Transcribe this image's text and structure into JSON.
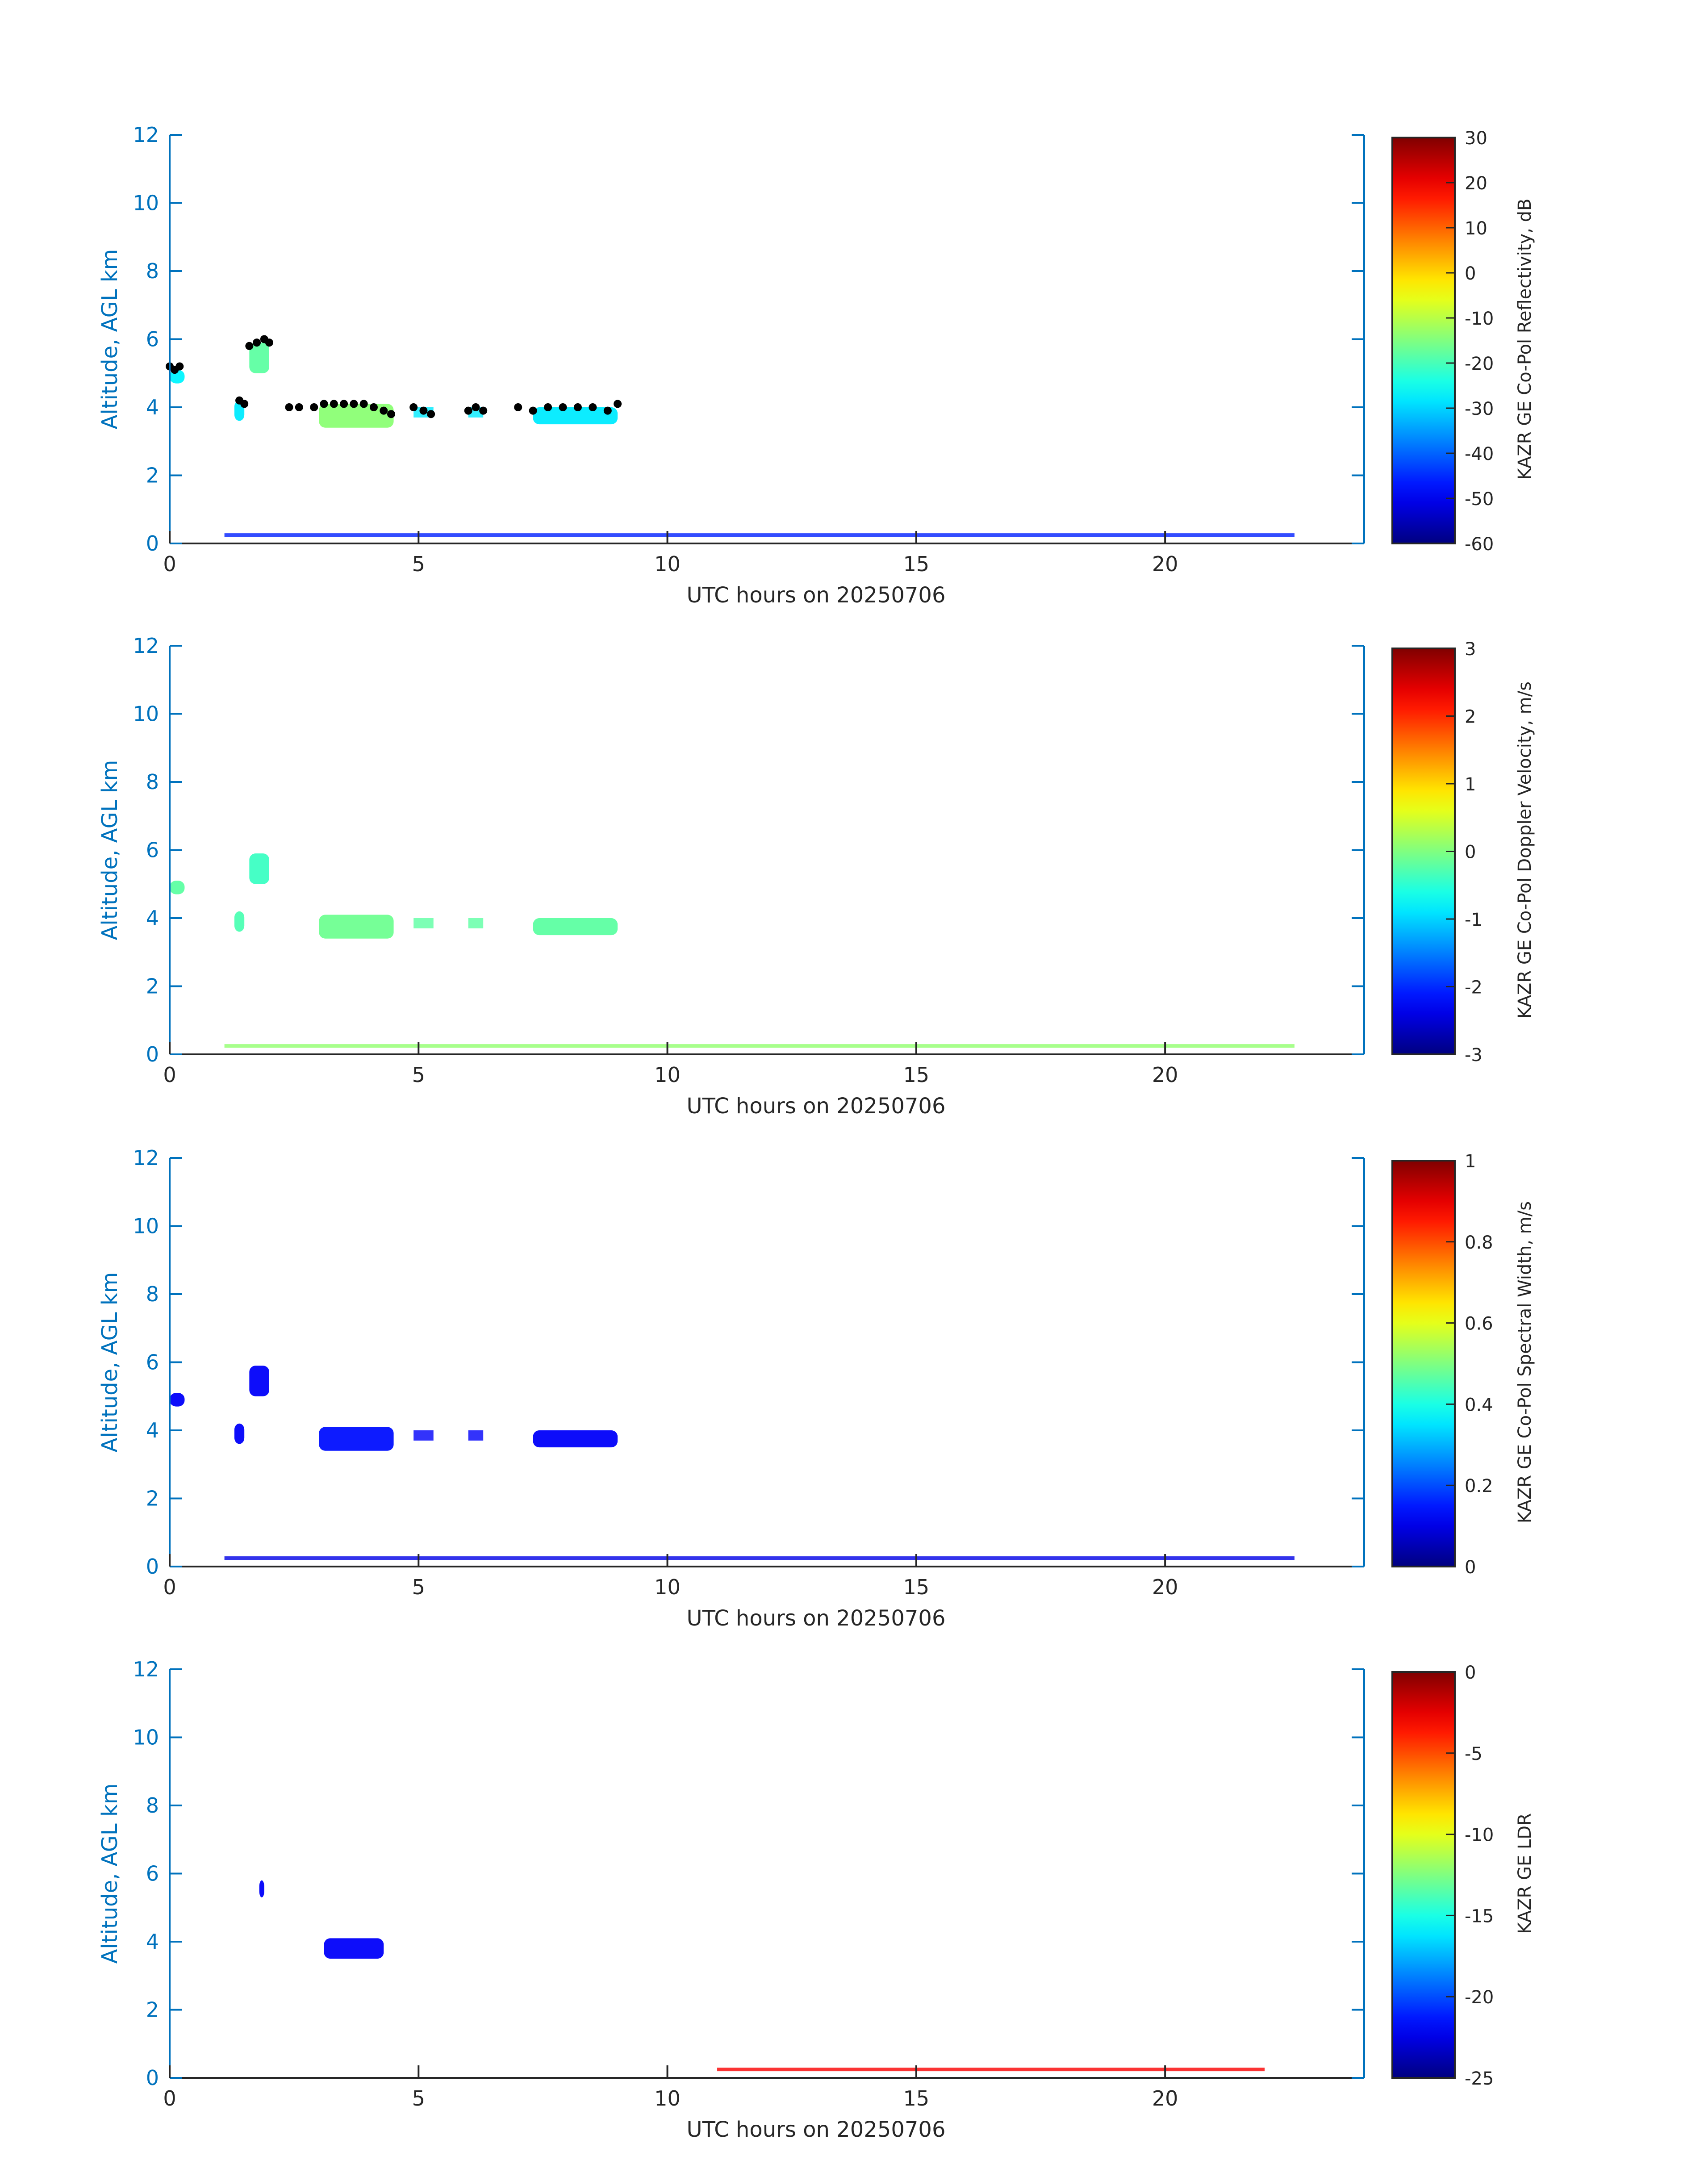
{
  "colors": {
    "axis": "#0072bd",
    "text": "#262626",
    "cloud_top": "#000000"
  },
  "colormap": "jet",
  "chart_data": [
    {
      "type": "heatmap",
      "xlabel": "UTC hours on 20250706",
      "ylabel": "Altitude, AGL km",
      "xlim": [
        0,
        24
      ],
      "ylim": [
        0,
        12
      ],
      "xticks": [
        0,
        5,
        10,
        15,
        20
      ],
      "yticks": [
        0,
        2,
        4,
        6,
        8,
        10,
        12
      ],
      "colorbar_label": "KAZR GE Co-Pol Reflectivity, dB",
      "clim": [
        -60,
        30
      ],
      "cticks": [
        -60,
        -50,
        -40,
        -30,
        -20,
        -10,
        0,
        10,
        20,
        30
      ],
      "echo_regions": [
        {
          "x": [
            0.0,
            0.3
          ],
          "y": [
            4.7,
            5.1
          ],
          "value": -27
        },
        {
          "x": [
            1.3,
            1.5
          ],
          "y": [
            3.6,
            4.2
          ],
          "value": -28
        },
        {
          "x": [
            1.6,
            2.0
          ],
          "y": [
            5.0,
            5.9
          ],
          "value": -18
        },
        {
          "x": [
            3.0,
            4.5
          ],
          "y": [
            3.4,
            4.1
          ],
          "value": -14
        },
        {
          "x": [
            4.9,
            5.3
          ],
          "y": [
            3.7,
            4.0
          ],
          "value": -28
        },
        {
          "x": [
            6.0,
            6.3
          ],
          "y": [
            3.7,
            4.0
          ],
          "value": -28
        },
        {
          "x": [
            7.3,
            9.0
          ],
          "y": [
            3.5,
            4.0
          ],
          "value": -28
        },
        {
          "x": [
            1.1,
            22.6
          ],
          "y": [
            0.2,
            0.3
          ],
          "value": -46
        }
      ],
      "cloud_top_points": [
        {
          "x": 0.0,
          "y": 5.2
        },
        {
          "x": 0.1,
          "y": 5.1
        },
        {
          "x": 0.2,
          "y": 5.2
        },
        {
          "x": 1.4,
          "y": 4.2
        },
        {
          "x": 1.5,
          "y": 4.1
        },
        {
          "x": 1.6,
          "y": 5.8
        },
        {
          "x": 1.75,
          "y": 5.9
        },
        {
          "x": 1.9,
          "y": 6.0
        },
        {
          "x": 2.0,
          "y": 5.9
        },
        {
          "x": 2.4,
          "y": 4.0
        },
        {
          "x": 2.6,
          "y": 4.0
        },
        {
          "x": 2.9,
          "y": 4.0
        },
        {
          "x": 3.1,
          "y": 4.1
        },
        {
          "x": 3.3,
          "y": 4.1
        },
        {
          "x": 3.5,
          "y": 4.1
        },
        {
          "x": 3.7,
          "y": 4.1
        },
        {
          "x": 3.9,
          "y": 4.1
        },
        {
          "x": 4.1,
          "y": 4.0
        },
        {
          "x": 4.3,
          "y": 3.9
        },
        {
          "x": 4.45,
          "y": 3.8
        },
        {
          "x": 4.9,
          "y": 4.0
        },
        {
          "x": 5.1,
          "y": 3.9
        },
        {
          "x": 5.25,
          "y": 3.8
        },
        {
          "x": 6.0,
          "y": 3.9
        },
        {
          "x": 6.15,
          "y": 4.0
        },
        {
          "x": 6.3,
          "y": 3.9
        },
        {
          "x": 7.0,
          "y": 4.0
        },
        {
          "x": 7.3,
          "y": 3.9
        },
        {
          "x": 7.6,
          "y": 4.0
        },
        {
          "x": 7.9,
          "y": 4.0
        },
        {
          "x": 8.2,
          "y": 4.0
        },
        {
          "x": 8.5,
          "y": 4.0
        },
        {
          "x": 8.8,
          "y": 3.9
        },
        {
          "x": 9.0,
          "y": 4.1
        }
      ]
    },
    {
      "type": "heatmap",
      "xlabel": "UTC hours on 20250706",
      "ylabel": "Altitude, AGL km",
      "xlim": [
        0,
        24
      ],
      "ylim": [
        0,
        12
      ],
      "xticks": [
        0,
        5,
        10,
        15,
        20
      ],
      "yticks": [
        0,
        2,
        4,
        6,
        8,
        10,
        12
      ],
      "colorbar_label": "KAZR GE Co-Pol Doppler Velocity, m/s",
      "clim": [
        -3,
        3
      ],
      "cticks": [
        -3,
        -2,
        -1,
        0,
        1,
        2,
        3
      ],
      "echo_regions": [
        {
          "x": [
            0.0,
            0.3
          ],
          "y": [
            4.7,
            5.1
          ],
          "value": -0.2
        },
        {
          "x": [
            1.3,
            1.5
          ],
          "y": [
            3.6,
            4.2
          ],
          "value": -0.3
        },
        {
          "x": [
            1.6,
            2.0
          ],
          "y": [
            5.0,
            5.9
          ],
          "value": -0.4
        },
        {
          "x": [
            3.0,
            4.5
          ],
          "y": [
            3.4,
            4.1
          ],
          "value": -0.1
        },
        {
          "x": [
            4.9,
            5.3
          ],
          "y": [
            3.7,
            4.0
          ],
          "value": -0.2
        },
        {
          "x": [
            6.0,
            6.3
          ],
          "y": [
            3.7,
            4.0
          ],
          "value": -0.2
        },
        {
          "x": [
            7.3,
            9.0
          ],
          "y": [
            3.5,
            4.0
          ],
          "value": -0.2
        },
        {
          "x": [
            1.1,
            22.6
          ],
          "y": [
            0.2,
            0.3
          ],
          "value": 0.1
        }
      ]
    },
    {
      "type": "heatmap",
      "xlabel": "UTC hours on 20250706",
      "ylabel": "Altitude, AGL km",
      "xlim": [
        0,
        24
      ],
      "ylim": [
        0,
        12
      ],
      "xticks": [
        0,
        5,
        10,
        15,
        20
      ],
      "yticks": [
        0,
        2,
        4,
        6,
        8,
        10,
        12
      ],
      "colorbar_label": "KAZR GE Co-Pol Spectral Width, m/s",
      "clim": [
        0,
        1
      ],
      "cticks": [
        0,
        0.2,
        0.4,
        0.6,
        0.8,
        1
      ],
      "echo_regions": [
        {
          "x": [
            0.0,
            0.3
          ],
          "y": [
            4.7,
            5.1
          ],
          "value": 0.12
        },
        {
          "x": [
            1.3,
            1.5
          ],
          "y": [
            3.6,
            4.2
          ],
          "value": 0.12
        },
        {
          "x": [
            1.6,
            2.0
          ],
          "y": [
            5.0,
            5.9
          ],
          "value": 0.12
        },
        {
          "x": [
            3.0,
            4.5
          ],
          "y": [
            3.4,
            4.1
          ],
          "value": 0.14
        },
        {
          "x": [
            4.9,
            5.3
          ],
          "y": [
            3.7,
            4.0
          ],
          "value": 0.12
        },
        {
          "x": [
            6.0,
            6.3
          ],
          "y": [
            3.7,
            4.0
          ],
          "value": 0.12
        },
        {
          "x": [
            7.3,
            9.0
          ],
          "y": [
            3.5,
            4.0
          ],
          "value": 0.12
        },
        {
          "x": [
            1.1,
            22.6
          ],
          "y": [
            0.2,
            0.3
          ],
          "value": 0.1
        }
      ]
    },
    {
      "type": "heatmap",
      "xlabel": "UTC hours on 20250706",
      "ylabel": "Altitude, AGL km",
      "xlim": [
        0,
        24
      ],
      "ylim": [
        0,
        12
      ],
      "xticks": [
        0,
        5,
        10,
        15,
        20
      ],
      "yticks": [
        0,
        2,
        4,
        6,
        8,
        10,
        12
      ],
      "colorbar_label": "KAZR GE LDR",
      "clim": [
        -25,
        0
      ],
      "cticks": [
        -25,
        -20,
        -15,
        -10,
        -5,
        0
      ],
      "echo_regions": [
        {
          "x": [
            1.8,
            1.9
          ],
          "y": [
            5.3,
            5.8
          ],
          "value": -22
        },
        {
          "x": [
            3.1,
            4.3
          ],
          "y": [
            3.5,
            4.1
          ],
          "value": -22
        },
        {
          "x": [
            11.0,
            22.0
          ],
          "y": [
            0.2,
            0.3
          ],
          "value": -3
        }
      ]
    }
  ]
}
